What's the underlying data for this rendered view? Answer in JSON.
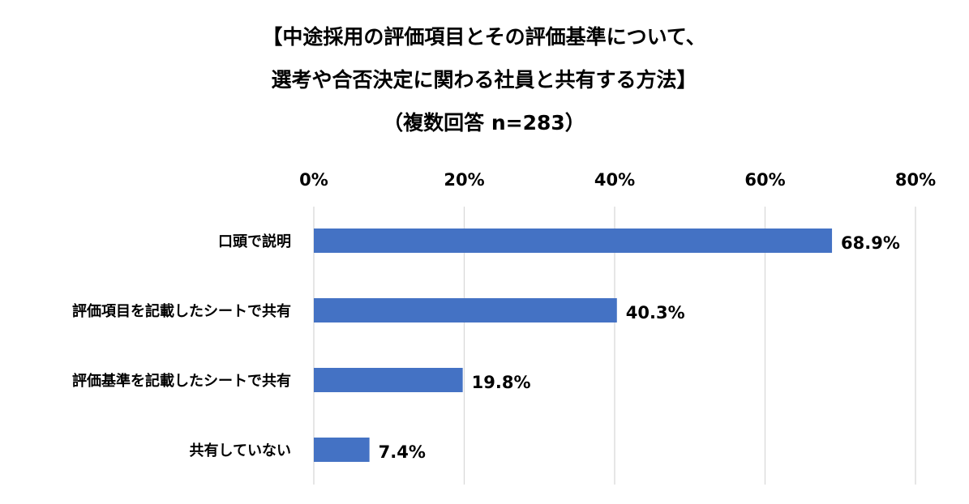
{
  "chart_data": {
    "type": "bar",
    "orientation": "horizontal",
    "title_lines": [
      "【中途採用の評価項目とその評価基準について、",
      "選考や合否決定に関わる社員と共有する方法】",
      "（複数回答 n=283）"
    ],
    "categories": [
      "口頭で説明",
      "評価項目を記載したシートで共有",
      "評価基準を記載したシートで共有",
      "共有していない"
    ],
    "values": [
      68.9,
      40.3,
      19.8,
      7.4
    ],
    "data_labels": [
      "68.9%",
      "40.3%",
      "19.8%",
      "7.4%"
    ],
    "xlim": [
      0,
      80
    ],
    "ticks": [
      0,
      20,
      40,
      60,
      80
    ],
    "tick_labels": [
      "0%",
      "20%",
      "40%",
      "60%",
      "80%"
    ],
    "axis_position": "top",
    "grid": true,
    "legend": "none",
    "colors": {
      "bar": "#4472C4",
      "grid": "#D9D9D9",
      "text": "#000000"
    }
  }
}
